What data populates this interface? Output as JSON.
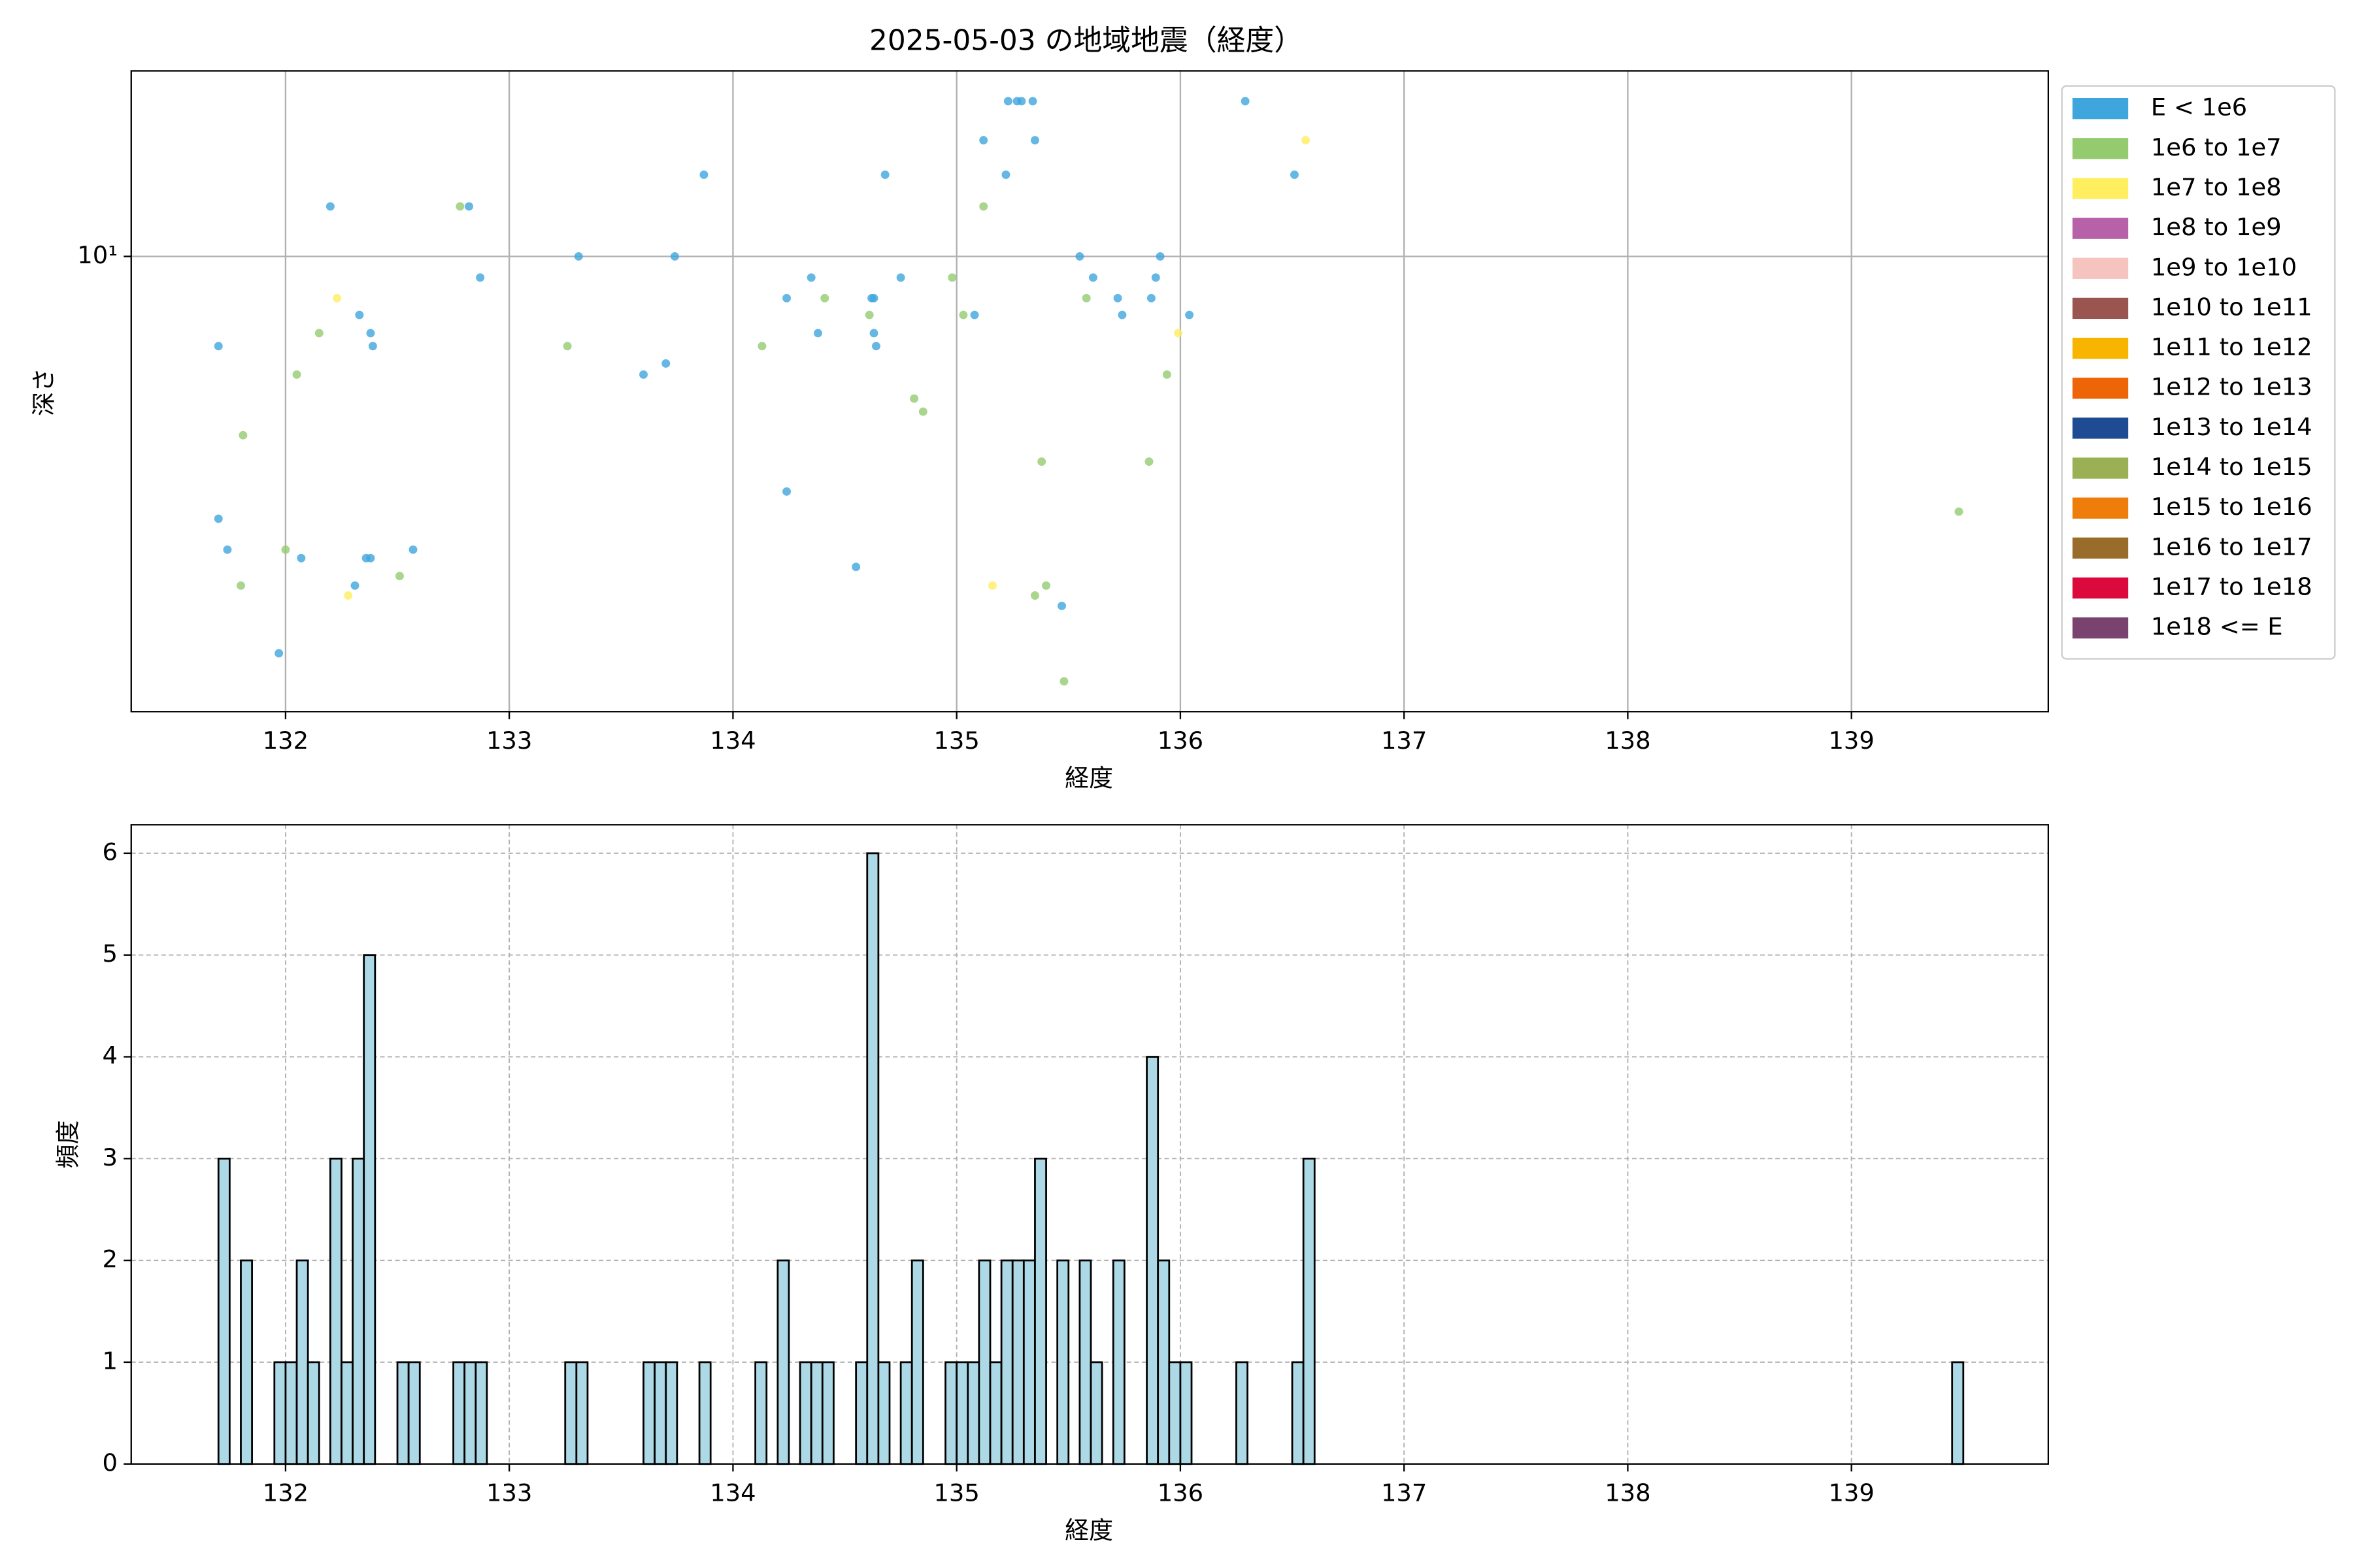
{
  "chart_data": [
    {
      "type": "scatter",
      "title": "2025-05-03 の地域地震（経度）",
      "xlabel": "経度",
      "ylabel": "深さ",
      "xlim": [
        131.31,
        139.88
      ],
      "xticks": [
        132,
        133,
        134,
        135,
        136,
        137,
        138,
        139
      ],
      "ylim": [
        1.31,
        22.9
      ],
      "yticks": [
        {
          "value": 10,
          "label": "10¹"
        }
      ],
      "ylog": true,
      "grid": true,
      "legend": "right",
      "series": [
        {
          "name": "E < 1e6",
          "color": "#3ea5dd",
          "x": [
            131.7,
            131.7,
            131.74,
            131.97,
            132.07,
            132.2,
            132.33,
            132.38,
            132.39,
            132.31,
            132.36,
            132.38,
            132.57,
            132.82,
            132.87,
            133.31,
            133.6,
            133.7,
            133.74,
            133.87,
            134.24,
            134.24,
            134.35,
            134.38,
            134.55,
            134.62,
            134.63,
            134.63,
            134.64,
            134.68,
            134.75,
            135.08,
            135.12,
            135.22,
            135.23,
            135.27,
            135.29,
            135.35,
            135.34,
            135.47,
            135.55,
            135.61,
            135.72,
            135.74,
            135.87,
            135.89,
            135.91,
            136.04,
            136.29,
            136.51
          ],
          "values": [
            6.7,
            3.1,
            2.7,
            1.7,
            2.6,
            12.5,
            7.7,
            7.1,
            6.7,
            2.3,
            2.6,
            2.6,
            2.7,
            12.5,
            9.1,
            10,
            5.9,
            6.2,
            10,
            14.4,
            8.3,
            3.5,
            9.1,
            7.1,
            2.5,
            8.3,
            8.3,
            7.1,
            6.7,
            14.4,
            9.1,
            7.7,
            16.8,
            14.4,
            20,
            20,
            20,
            16.8,
            20,
            2.1,
            10,
            9.1,
            8.3,
            7.7,
            8.3,
            9.1,
            10,
            7.7,
            20,
            14.4
          ]
        },
        {
          "name": "1e6 to 1e7",
          "color": "#95cb6f",
          "x": [
            131.81,
            131.8,
            132.0,
            132.05,
            132.15,
            132.51,
            132.78,
            133.26,
            134.13,
            134.41,
            134.61,
            134.81,
            134.85,
            134.98,
            135.03,
            135.12,
            135.35,
            135.38,
            135.4,
            135.48,
            135.58,
            135.86,
            135.94,
            139.48
          ],
          "values": [
            4.5,
            2.3,
            2.7,
            5.9,
            7.1,
            2.4,
            12.5,
            6.7,
            6.7,
            8.3,
            7.7,
            5.3,
            5.0,
            9.1,
            7.7,
            12.5,
            2.2,
            4.0,
            2.3,
            1.5,
            8.3,
            4.0,
            5.9,
            3.2
          ]
        },
        {
          "name": "1e7 to 1e8",
          "color": "#ffee5f",
          "x": [
            132.23,
            132.28,
            135.16,
            135.99,
            136.56
          ],
          "values": [
            8.3,
            2.2,
            2.3,
            7.1,
            16.8
          ]
        },
        {
          "name": "1e8 to 1e9",
          "color": "#b661a8",
          "x": [],
          "values": []
        },
        {
          "name": "1e9 to 1e10",
          "color": "#f5c4be",
          "x": [],
          "values": []
        },
        {
          "name": "1e10 to 1e11",
          "color": "#9a5550",
          "x": [],
          "values": []
        },
        {
          "name": "1e11 to 1e12",
          "color": "#f7b500",
          "x": [],
          "values": []
        },
        {
          "name": "1e12 to 1e13",
          "color": "#ee6507",
          "x": [],
          "values": []
        },
        {
          "name": "1e13 to 1e14",
          "color": "#1e4b92",
          "x": [],
          "values": []
        },
        {
          "name": "1e14 to 1e15",
          "color": "#9baf55",
          "x": [],
          "values": []
        },
        {
          "name": "1e15 to 1e16",
          "color": "#ee7d0c",
          "x": [],
          "values": []
        },
        {
          "name": "1e16 to 1e17",
          "color": "#9a6c2b",
          "x": [],
          "values": []
        },
        {
          "name": "1e17 to 1e18",
          "color": "#dc0a3c",
          "x": [],
          "values": []
        },
        {
          "name": "1e18 <= E",
          "color": "#7a426e",
          "x": [],
          "values": []
        }
      ]
    },
    {
      "type": "histogram",
      "xlabel": "経度",
      "ylabel": "頻度",
      "color": "#add8e6",
      "edgecolor": "#000000",
      "xlim": [
        131.31,
        139.88
      ],
      "xticks": [
        132,
        133,
        134,
        135,
        136,
        137,
        138,
        139
      ],
      "ylim": [
        0,
        6.28
      ],
      "yticks": [
        0,
        1,
        2,
        3,
        4,
        5,
        6
      ],
      "grid": true,
      "bins": [
        131.7,
        131.75,
        131.8,
        131.85,
        131.9,
        131.95,
        132,
        132.05,
        132.1,
        132.15,
        132.2,
        132.25,
        132.3,
        132.35,
        132.4,
        132.45,
        132.5,
        132.55,
        132.6,
        132.65,
        132.7,
        132.75,
        132.8,
        132.85,
        132.9,
        132.95,
        133,
        133.05,
        133.1,
        133.15,
        133.2,
        133.25,
        133.3,
        133.35,
        133.4,
        133.45,
        133.5,
        133.55,
        133.6,
        133.65,
        133.7,
        133.75,
        133.8,
        133.85,
        133.9,
        133.95,
        134,
        134.05,
        134.1,
        134.15,
        134.2,
        134.25,
        134.3,
        134.35,
        134.4,
        134.45,
        134.5,
        134.55,
        134.6,
        134.65,
        134.7,
        134.75,
        134.8,
        134.85,
        134.9,
        134.95,
        135,
        135.05,
        135.1,
        135.15,
        135.2,
        135.25,
        135.3,
        135.35,
        135.4,
        135.45,
        135.5,
        135.55,
        135.6,
        135.65,
        135.7,
        135.75,
        135.8,
        135.85,
        135.9,
        135.95,
        136,
        136.05,
        136.1,
        136.15,
        136.2,
        136.25,
        136.3,
        136.35,
        136.4,
        136.45,
        136.5,
        136.55,
        136.6,
        136.65,
        136.7,
        136.75,
        136.8,
        136.85,
        136.9,
        136.95,
        137,
        137.05,
        137.1,
        137.15,
        137.2,
        137.25,
        137.3,
        137.35,
        137.4,
        137.45,
        137.5,
        137.55,
        137.6,
        137.65,
        137.7,
        137.75,
        137.8,
        137.85,
        137.9,
        137.95,
        138,
        138.05,
        138.1,
        138.15,
        138.2,
        138.25,
        138.3,
        138.35,
        138.4,
        138.45,
        138.5,
        138.55,
        138.6,
        138.65,
        138.7,
        138.75,
        138.8,
        138.85,
        138.9,
        138.95,
        139,
        139.05,
        139.1,
        139.15,
        139.2,
        139.25,
        139.3,
        139.35,
        139.4,
        139.45,
        139.5
      ],
      "counts": [
        3,
        0,
        2,
        0,
        0,
        1,
        1,
        2,
        1,
        0,
        3,
        1,
        3,
        5,
        0,
        0,
        1,
        1,
        0,
        0,
        0,
        1,
        1,
        1,
        0,
        0,
        0,
        0,
        0,
        0,
        0,
        1,
        1,
        0,
        0,
        0,
        0,
        0,
        1,
        1,
        1,
        0,
        0,
        1,
        0,
        0,
        0,
        0,
        1,
        0,
        2,
        0,
        1,
        1,
        1,
        0,
        0,
        1,
        6,
        1,
        0,
        1,
        2,
        0,
        0,
        1,
        1,
        1,
        2,
        1,
        2,
        2,
        2,
        3,
        0,
        2,
        0,
        2,
        1,
        0,
        2,
        0,
        0,
        4,
        2,
        1,
        1,
        0,
        0,
        0,
        0,
        1,
        0,
        0,
        0,
        0,
        1,
        3,
        0,
        0,
        0,
        0,
        0,
        0,
        0,
        0,
        0,
        0,
        0,
        0,
        0,
        0,
        0,
        0,
        0,
        0,
        0,
        0,
        0,
        0,
        0,
        0,
        0,
        0,
        0,
        0,
        0,
        0,
        0,
        0,
        0,
        0,
        0,
        0,
        0,
        0,
        0,
        0,
        0,
        0,
        0,
        0,
        0,
        0,
        0,
        0,
        0,
        0,
        0,
        0,
        0,
        0,
        0,
        0,
        0,
        1
      ]
    }
  ]
}
